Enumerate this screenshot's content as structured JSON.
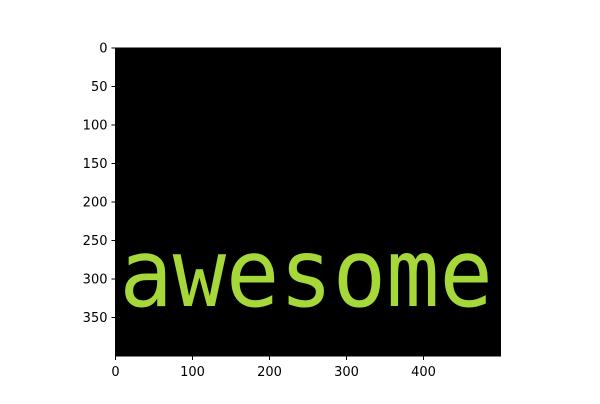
{
  "chart_data": {
    "type": "image",
    "title": "",
    "xlabel": "",
    "ylabel": "",
    "xlim": [
      0,
      500
    ],
    "ylim": [
      400,
      0
    ],
    "y_axis_inverted": true,
    "grid": false,
    "x_ticks": [
      0,
      100,
      200,
      300,
      400
    ],
    "y_ticks": [
      0,
      50,
      100,
      150,
      200,
      250,
      300,
      350
    ],
    "background_color": "#000000",
    "text_annotation": {
      "text": "awesome",
      "color": "#a6d83a",
      "x_start": 5,
      "x_end": 490,
      "baseline_y": 335,
      "x_height_top_y": 268
    }
  }
}
